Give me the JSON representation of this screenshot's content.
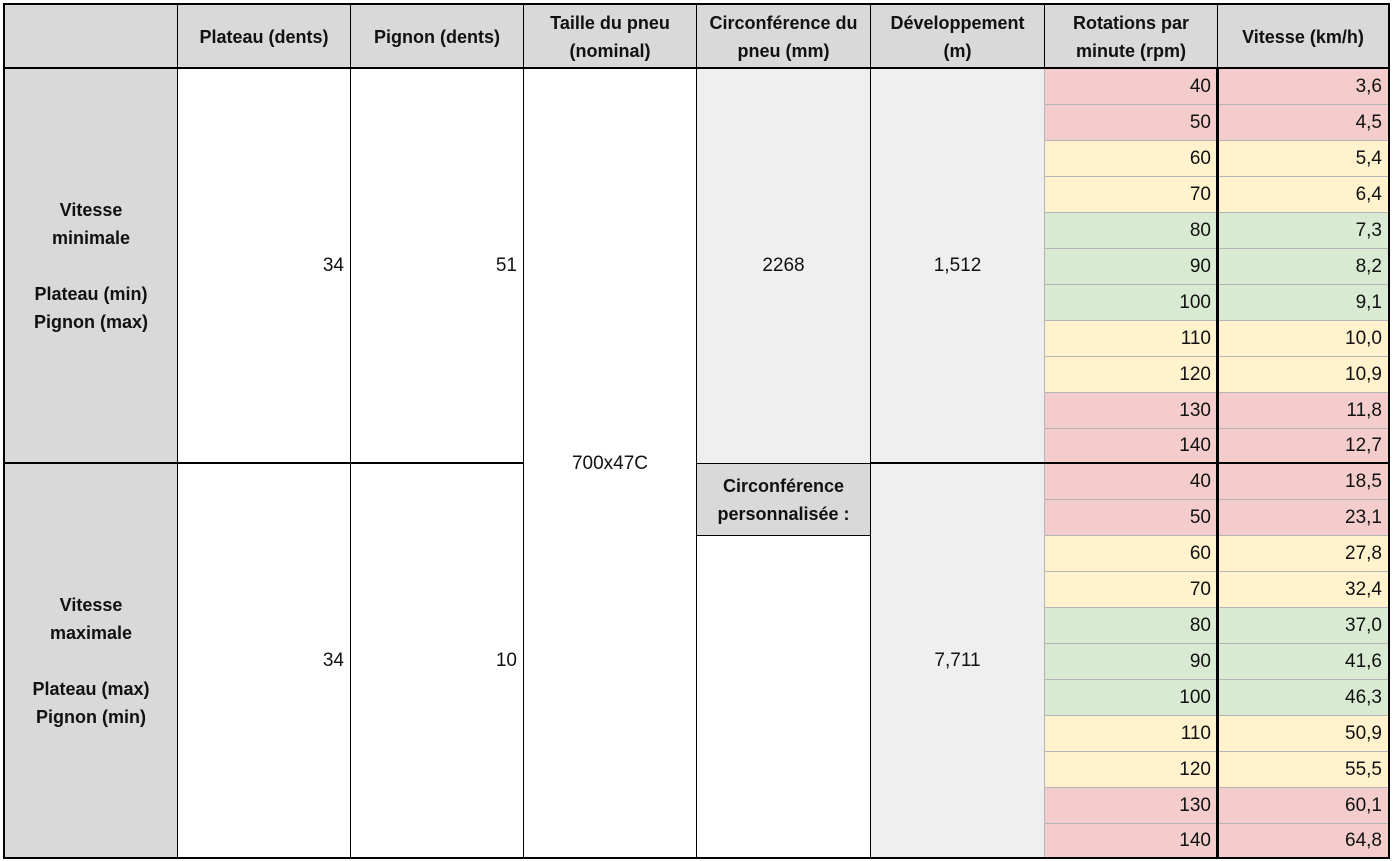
{
  "headers": {
    "plateau": "Plateau (dents)",
    "pignon": "Pignon (dents)",
    "taille_l1": "Taille du pneu",
    "taille_l2": "(nominal)",
    "circ_l1": "Circonférence du",
    "circ_l2": "pneu (mm)",
    "dev_l1": "Développement",
    "dev_l2": "(m)",
    "rpm_l1": "Rotations par",
    "rpm_l2": "minute (rpm)",
    "vitesse": "Vitesse (km/h)"
  },
  "min_block": {
    "label_l1": "Vitesse",
    "label_l2": "minimale",
    "label_l3": "Plateau (min)",
    "label_l4": "Pignon (max)",
    "plateau": "34",
    "pignon": "51",
    "circonference": "2268",
    "developpement": "1,512",
    "rows": [
      {
        "rpm": "40",
        "speed": "3,6",
        "color": "#f4cccc"
      },
      {
        "rpm": "50",
        "speed": "4,5",
        "color": "#f4cccc"
      },
      {
        "rpm": "60",
        "speed": "5,4",
        "color": "#fff2cc"
      },
      {
        "rpm": "70",
        "speed": "6,4",
        "color": "#fff2cc"
      },
      {
        "rpm": "80",
        "speed": "7,3",
        "color": "#d9ead3"
      },
      {
        "rpm": "90",
        "speed": "8,2",
        "color": "#d9ead3"
      },
      {
        "rpm": "100",
        "speed": "9,1",
        "color": "#d9ead3"
      },
      {
        "rpm": "110",
        "speed": "10,0",
        "color": "#fff2cc"
      },
      {
        "rpm": "120",
        "speed": "10,9",
        "color": "#fff2cc"
      },
      {
        "rpm": "130",
        "speed": "11,8",
        "color": "#f4cccc"
      },
      {
        "rpm": "140",
        "speed": "12,7",
        "color": "#f4cccc"
      }
    ]
  },
  "max_block": {
    "label_l1": "Vitesse",
    "label_l2": "maximale",
    "label_l3": "Plateau (max)",
    "label_l4": "Pignon (min)",
    "plateau": "34",
    "pignon": "10",
    "developpement": "7,711",
    "rows": [
      {
        "rpm": "40",
        "speed": "18,5",
        "color": "#f4cccc"
      },
      {
        "rpm": "50",
        "speed": "23,1",
        "color": "#f4cccc"
      },
      {
        "rpm": "60",
        "speed": "27,8",
        "color": "#fff2cc"
      },
      {
        "rpm": "70",
        "speed": "32,4",
        "color": "#fff2cc"
      },
      {
        "rpm": "80",
        "speed": "37,0",
        "color": "#d9ead3"
      },
      {
        "rpm": "90",
        "speed": "41,6",
        "color": "#d9ead3"
      },
      {
        "rpm": "100",
        "speed": "46,3",
        "color": "#d9ead3"
      },
      {
        "rpm": "110",
        "speed": "50,9",
        "color": "#fff2cc"
      },
      {
        "rpm": "120",
        "speed": "55,5",
        "color": "#fff2cc"
      },
      {
        "rpm": "130",
        "speed": "60,1",
        "color": "#f4cccc"
      },
      {
        "rpm": "140",
        "speed": "64,8",
        "color": "#f4cccc"
      }
    ]
  },
  "tire_size": "700x47C",
  "custom_circ_l1": "Circonférence",
  "custom_circ_l2": "personnalisée :",
  "custom_circ_value": ""
}
